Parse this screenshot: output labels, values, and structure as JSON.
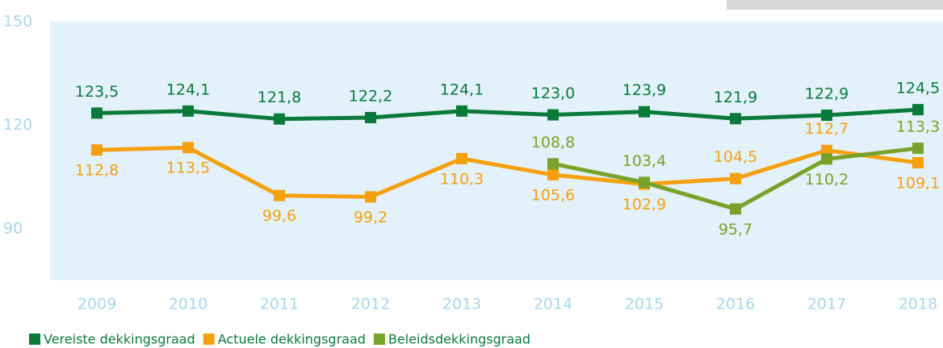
{
  "chart_data": {
    "type": "line",
    "categories": [
      "2009",
      "2010",
      "2011",
      "2012",
      "2013",
      "2014",
      "2015",
      "2016",
      "2017",
      "2018"
    ],
    "series": [
      {
        "name": "Vereiste dekkingsgraad",
        "color": "#0a7a3a",
        "values": [
          123.5,
          124.1,
          121.8,
          122.2,
          124.1,
          123.0,
          123.9,
          121.9,
          122.9,
          124.5
        ],
        "value_labels": [
          "123,5",
          "124,1",
          "121,8",
          "122,2",
          "124,1",
          "123,0",
          "123,9",
          "121,9",
          "122,9",
          "124,5"
        ]
      },
      {
        "name": "Actuele dekkingsgraad",
        "color": "#f5a00f",
        "values": [
          112.8,
          113.5,
          99.6,
          99.2,
          110.3,
          105.6,
          102.9,
          104.5,
          112.7,
          109.1
        ],
        "value_labels": [
          "112,8",
          "113,5",
          "99,6",
          "99,2",
          "110,3",
          "105,6",
          "102,9",
          "104,5",
          "112,7",
          "109,1"
        ]
      },
      {
        "name": "Beleidsdekkingsgraad",
        "color": "#79a22a",
        "values": [
          null,
          null,
          null,
          null,
          null,
          108.8,
          103.4,
          95.7,
          110.2,
          113.3
        ],
        "value_labels": [
          null,
          null,
          null,
          null,
          null,
          "108,8",
          "103,4",
          "95,7",
          "110,2",
          "113,3"
        ]
      }
    ],
    "ylim": [
      75,
      150
    ],
    "yticks": [
      90,
      120,
      150
    ]
  }
}
